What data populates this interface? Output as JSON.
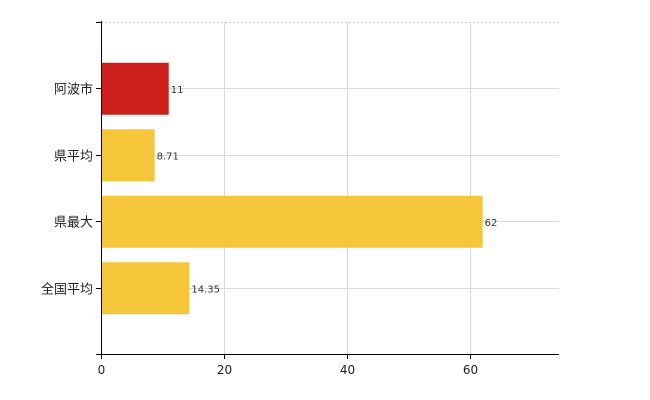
{
  "chart_data": {
    "type": "bar",
    "orientation": "horizontal",
    "categories": [
      "阿波市",
      "県平均",
      "県最大",
      "全国平均"
    ],
    "values": [
      11,
      8.71,
      62,
      14.35
    ],
    "value_labels": [
      "11",
      "8.71",
      "62",
      "14.35"
    ],
    "colors": [
      "#cc1f1a",
      "#f5c53a",
      "#f5c53a",
      "#f5c53a"
    ],
    "xlim": [
      0,
      74.4
    ],
    "x_ticks": [
      0,
      20,
      40,
      60
    ],
    "x_tick_labels": [
      "0",
      "20",
      "40",
      "60"
    ],
    "title": "",
    "xlabel": "",
    "ylabel": "",
    "grid": true,
    "legend": "none"
  }
}
